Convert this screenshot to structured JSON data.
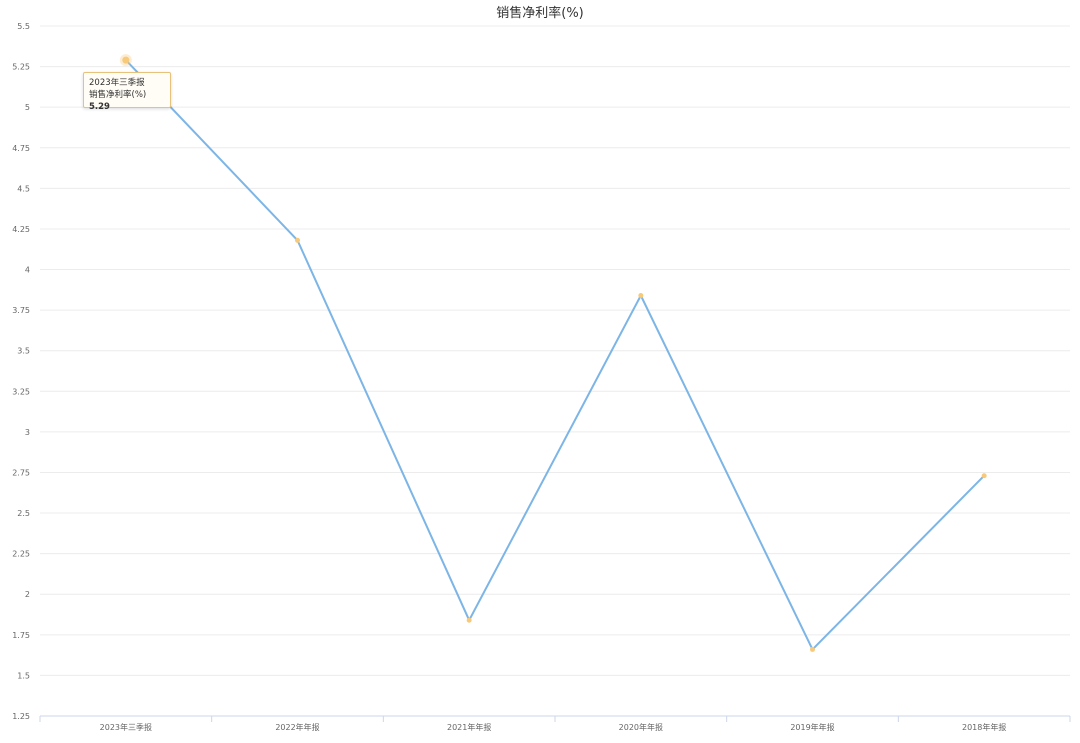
{
  "chart_data": {
    "type": "line",
    "title": "销售净利率(%)",
    "categories": [
      "2023年三季报",
      "2022年年报",
      "2021年年报",
      "2020年年报",
      "2019年年报",
      "2018年年报"
    ],
    "series": [
      {
        "name": "销售净利率(%)",
        "values": [
          5.29,
          4.18,
          1.84,
          3.84,
          1.66,
          2.73
        ]
      }
    ],
    "ylim": [
      1.25,
      5.5
    ],
    "yticks": [
      "1.25",
      "1.5",
      "1.75",
      "2",
      "2.25",
      "2.5",
      "2.75",
      "3",
      "3.25",
      "3.5",
      "3.75",
      "4",
      "4.25",
      "4.5",
      "4.75",
      "5",
      "5.25",
      "5.5"
    ],
    "grid": true,
    "line_color": "#7cb5e6",
    "marker_color": "#f7c97a",
    "tooltip": {
      "category": "2023年三季报",
      "label": "销售净利率(%)",
      "value": "5.29"
    }
  }
}
